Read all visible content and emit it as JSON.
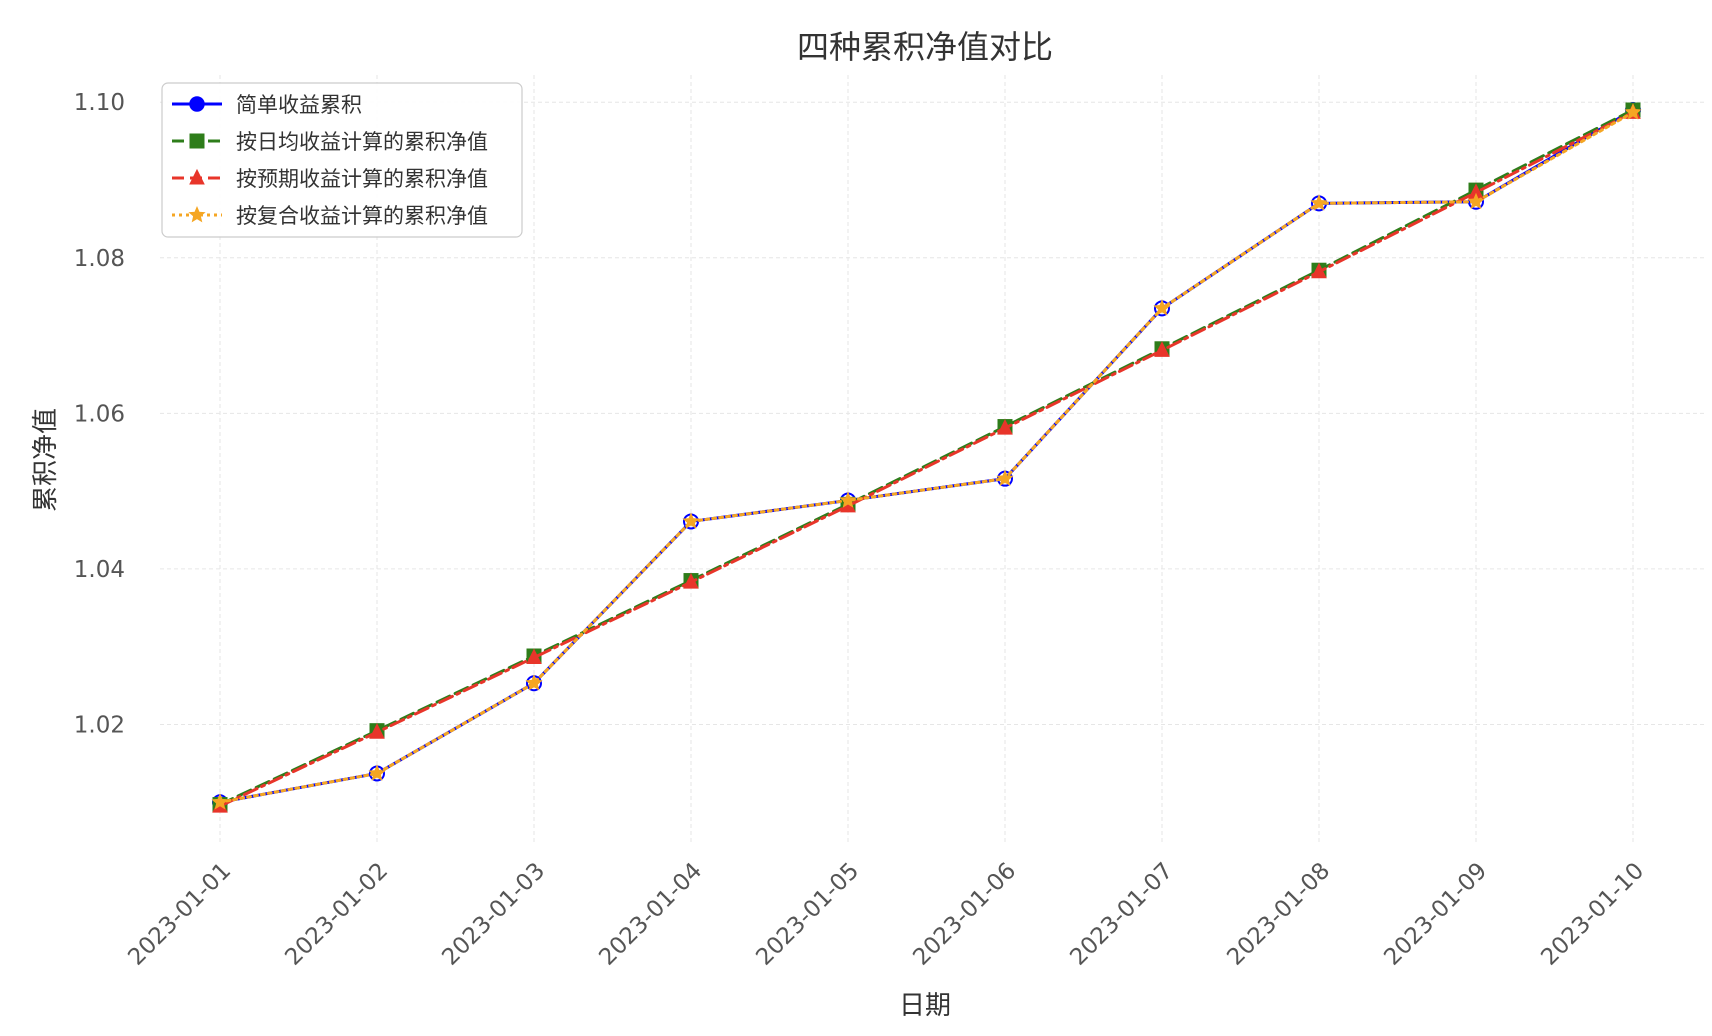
{
  "chart_data": {
    "type": "line",
    "title": "四种累积净值对比",
    "xlabel": "日期",
    "ylabel": "累积净值",
    "x": [
      "2023-01-01",
      "2023-01-02",
      "2023-01-03",
      "2023-01-04",
      "2023-01-05",
      "2023-01-06",
      "2023-01-07",
      "2023-01-08",
      "2023-01-09",
      "2023-01-10"
    ],
    "ylim": [
      1.0045,
      1.1035
    ],
    "yticks": [
      "1.02",
      "1.04",
      "1.06",
      "1.08",
      "1.10"
    ],
    "grid": true,
    "legend_position": "top-left",
    "series": [
      {
        "name": "简单收益累积",
        "color": "#0000ff",
        "line_style": "solid",
        "marker": "circle",
        "values": [
          1.01,
          1.0137,
          1.0253,
          1.0461,
          1.0488,
          1.0516,
          1.0735,
          1.087,
          1.0872,
          1.099
        ]
      },
      {
        "name": "按日均收益计算的累积净值",
        "color": "#2e7d1a",
        "line_style": "dashed",
        "marker": "square",
        "values": [
          1.0097,
          1.0192,
          1.0288,
          1.0385,
          1.0483,
          1.0583,
          1.0683,
          1.0784,
          1.0887,
          1.099
        ]
      },
      {
        "name": "按预期收益计算的累积净值",
        "color": "#e8352a",
        "line_style": "dashdot",
        "marker": "triangle",
        "values": [
          1.0095,
          1.019,
          1.0286,
          1.0383,
          1.0481,
          1.0581,
          1.0681,
          1.0782,
          1.0884,
          1.0987
        ]
      },
      {
        "name": "按复合收益计算的累积净值",
        "color": "#f5a623",
        "line_style": "dotted",
        "marker": "star",
        "values": [
          1.01,
          1.0137,
          1.0253,
          1.0461,
          1.0488,
          1.0516,
          1.0735,
          1.087,
          1.0872,
          1.0987
        ]
      }
    ]
  }
}
